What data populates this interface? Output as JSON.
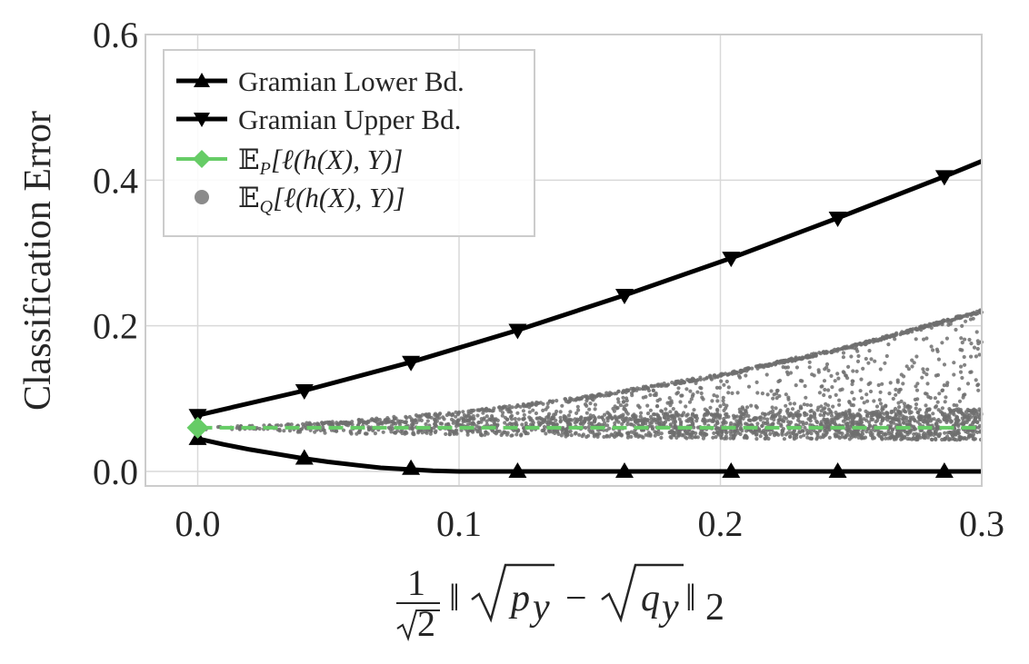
{
  "chart_data": {
    "type": "line",
    "ylabel": "Classification Error",
    "xlabel_parts": {
      "frac_num": "1",
      "frac_den": "2",
      "norm": "‖",
      "p": "p",
      "q": "q",
      "sub": "y",
      "minus": "−",
      "norm_sub": "2"
    },
    "xlim": [
      -0.02,
      0.3
    ],
    "ylim": [
      -0.02,
      0.6
    ],
    "xticks": [
      0.0,
      0.1,
      0.2,
      0.3
    ],
    "xtick_labels": [
      "0.0",
      "0.1",
      "0.2",
      "0.3"
    ],
    "yticks": [
      0.0,
      0.2,
      0.4,
      0.6
    ],
    "ytick_labels": [
      "0.0",
      "0.2",
      "0.4",
      "0.6"
    ],
    "grid": true,
    "legend_position": "top-left",
    "series": [
      {
        "name": "Gramian Lower Bd.",
        "color": "#000000",
        "marker": "triangle-up",
        "line": "solid",
        "x": [
          0.0,
          0.0408,
          0.0816,
          0.1224,
          0.1633,
          0.2041,
          0.2449,
          0.2857
        ],
        "y": [
          0.045,
          0.018,
          0.004,
          0.0,
          0.0,
          0.0,
          0.0,
          0.0
        ],
        "curve": {
          "x": [
            0.0,
            0.01,
            0.02,
            0.03,
            0.04,
            0.05,
            0.06,
            0.07,
            0.08,
            0.09,
            0.1,
            0.11,
            0.3
          ],
          "y": [
            0.045,
            0.037,
            0.03,
            0.024,
            0.018,
            0.013,
            0.009,
            0.005,
            0.003,
            0.001,
            0.0,
            0.0,
            0.0
          ]
        }
      },
      {
        "name": "Gramian Upper Bd.",
        "color": "#000000",
        "marker": "triangle-down",
        "line": "solid",
        "x": [
          0.0,
          0.0408,
          0.0816,
          0.1224,
          0.1633,
          0.2041,
          0.2449,
          0.2857
        ],
        "y": [
          0.077,
          0.111,
          0.15,
          0.194,
          0.242,
          0.293,
          0.348,
          0.405
        ],
        "curve": {
          "x": [
            0.0,
            0.0408,
            0.0816,
            0.1224,
            0.1633,
            0.2041,
            0.2449,
            0.2857,
            0.3
          ],
          "y": [
            0.077,
            0.111,
            0.15,
            0.194,
            0.242,
            0.293,
            0.348,
            0.405,
            0.426
          ]
        }
      },
      {
        "name_parts": {
          "E": "𝔼",
          "sub": "P",
          "body": "[ℓ(h(X), Y)]"
        },
        "color": "#66cc66",
        "marker": "diamond",
        "line": "dashed",
        "x": [
          0.0,
          0.3
        ],
        "y": [
          0.06,
          0.06
        ]
      },
      {
        "name_parts": {
          "E": "𝔼",
          "sub": "Q",
          "body": "[ℓ(h(X), Y)]"
        },
        "color": "#6e6e6e",
        "marker": "circle",
        "line": "none",
        "scatter_envelope": {
          "x": [
            0.0,
            0.05,
            0.1,
            0.15,
            0.2,
            0.25,
            0.3
          ],
          "upper": [
            0.06,
            0.068,
            0.082,
            0.104,
            0.134,
            0.173,
            0.222
          ],
          "band_low": [
            0.06,
            0.052,
            0.05,
            0.047,
            0.045,
            0.044,
            0.043
          ],
          "band_high": [
            0.06,
            0.066,
            0.07,
            0.074,
            0.078,
            0.081,
            0.085
          ]
        },
        "point_count": 3000
      }
    ]
  }
}
